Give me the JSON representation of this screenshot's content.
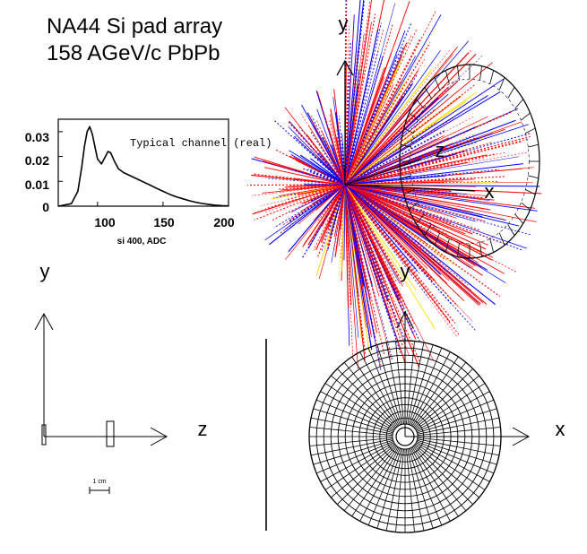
{
  "title": {
    "line1": "NA44 Si pad array",
    "line2": "158 AGeV/c PbPb"
  },
  "colors": {
    "track_primary": "#ff0000",
    "track_secondary": "#0000ff",
    "track_accent": "#ffe000",
    "lines": "#000000",
    "background": "#ffffff"
  },
  "event_display": {
    "axis_labels": {
      "y": "y",
      "z": "z",
      "x": "x"
    }
  },
  "inset_histogram": {
    "annotation": "Typical channel (real)",
    "xlabel": "si 400, ADC",
    "x_ticks": [
      "100",
      "150",
      "200"
    ],
    "y_ticks": [
      "0",
      "0.01",
      "0.02",
      "0.03"
    ]
  },
  "side_view": {
    "axis_labels": {
      "y": "y",
      "z": "z"
    },
    "scale_bar_label": "1 cm"
  },
  "front_view": {
    "axis_labels": {
      "y": "y",
      "x": "x"
    }
  },
  "chart_data": {
    "type": "line",
    "title": "Typical channel (real)",
    "xlabel": "si 400, ADC",
    "ylabel": "",
    "xlim": [
      70,
      200
    ],
    "ylim": [
      0,
      0.035
    ],
    "x": [
      70,
      80,
      85,
      88,
      90,
      92,
      94,
      96,
      98,
      100,
      103,
      106,
      108,
      110,
      113,
      116,
      120,
      124,
      128,
      132,
      136,
      140,
      145,
      150,
      155,
      160,
      165,
      170,
      175,
      180,
      185,
      190,
      195,
      200
    ],
    "series": [
      {
        "values": [
          0,
          0.001,
          0.006,
          0.016,
          0.024,
          0.03,
          0.032,
          0.029,
          0.024,
          0.019,
          0.017,
          0.02,
          0.022,
          0.0215,
          0.018,
          0.015,
          0.0135,
          0.0125,
          0.0115,
          0.0105,
          0.0095,
          0.0085,
          0.0072,
          0.006,
          0.0048,
          0.0038,
          0.003,
          0.0022,
          0.0016,
          0.0011,
          0.0007,
          0.0004,
          0.0002,
          0.0001
        ]
      }
    ]
  }
}
